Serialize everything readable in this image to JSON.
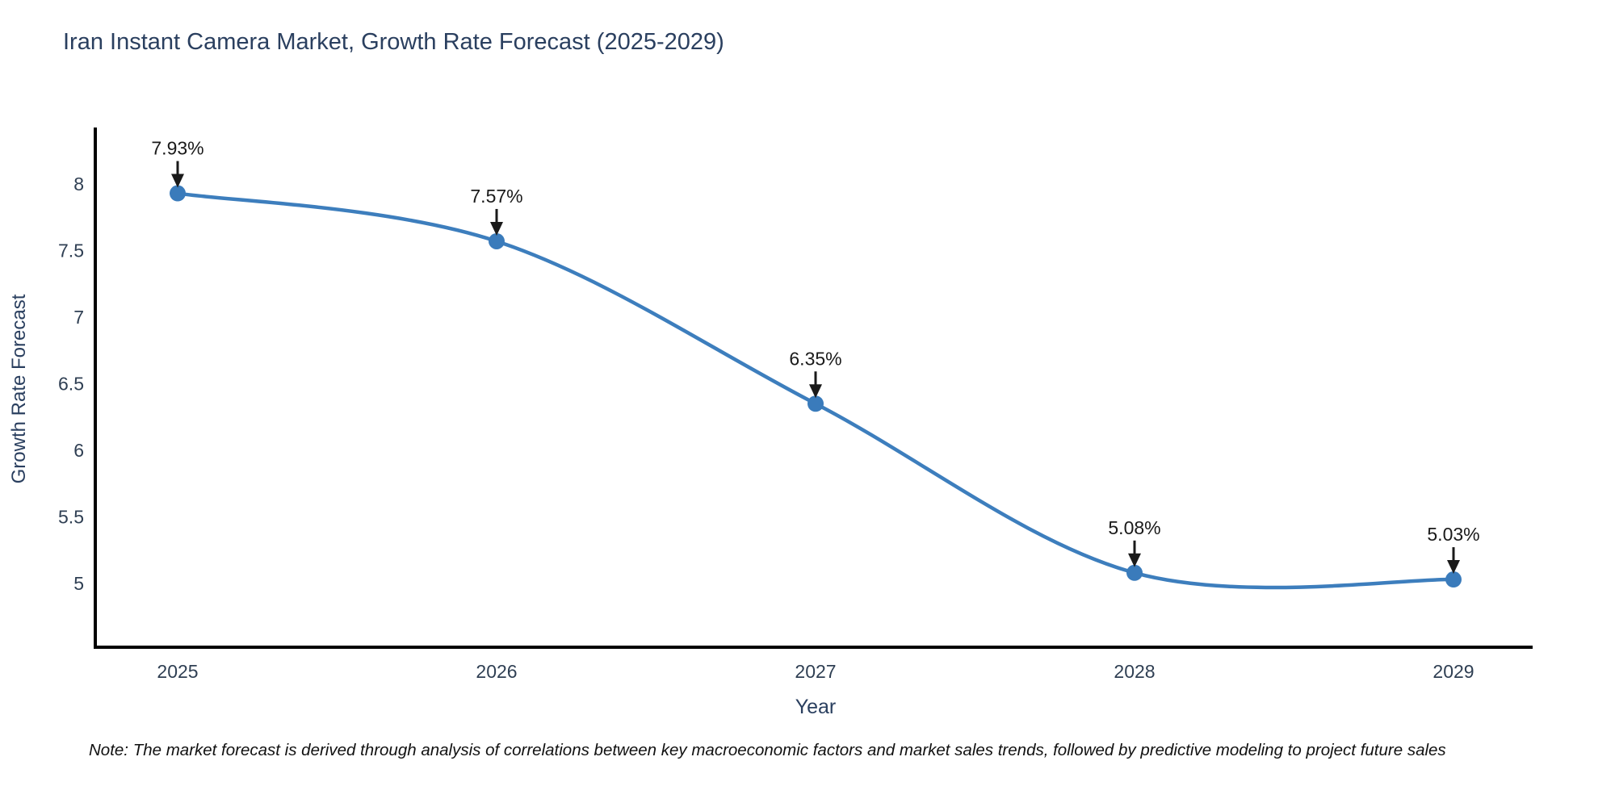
{
  "page": {
    "title": "Iran Instant Camera Market, Growth Rate Forecast (2025-2029)",
    "note": "Note: The market forecast is derived through analysis of correlations between key macroeconomic factors and market sales trends, followed by predictive modeling to project future sales"
  },
  "chart_data": {
    "type": "line",
    "title": "Iran Instant Camera Market, Growth Rate Forecast (2025-2029)",
    "xlabel": "Year",
    "ylabel": "Growth Rate Forecast",
    "categories": [
      "2025",
      "2026",
      "2027",
      "2028",
      "2029"
    ],
    "series": [
      {
        "name": "Growth Rate Forecast",
        "values": [
          7.93,
          7.57,
          6.35,
          5.08,
          5.03
        ],
        "point_labels": [
          "7.93%",
          "7.57%",
          "6.35%",
          "5.08%",
          "5.03%"
        ]
      }
    ],
    "y_ticks": [
      "8",
      "7.5",
      "7",
      "6.5",
      "6",
      "5.5",
      "5"
    ],
    "y_tick_values": [
      8,
      7.5,
      7,
      6.5,
      6,
      5.5,
      5
    ],
    "ylim": [
      4.5,
      8.4
    ],
    "grid": false,
    "legend_position": "none",
    "line_shape": "spline",
    "colors": {
      "line": "#3d7ebd",
      "marker": "#3a7bbb",
      "axis": "#000000",
      "title_text": "#2a3f5f",
      "tick_text": "#2f3f53",
      "annotation": "#1a1a1a",
      "background": "#ffffff"
    }
  }
}
